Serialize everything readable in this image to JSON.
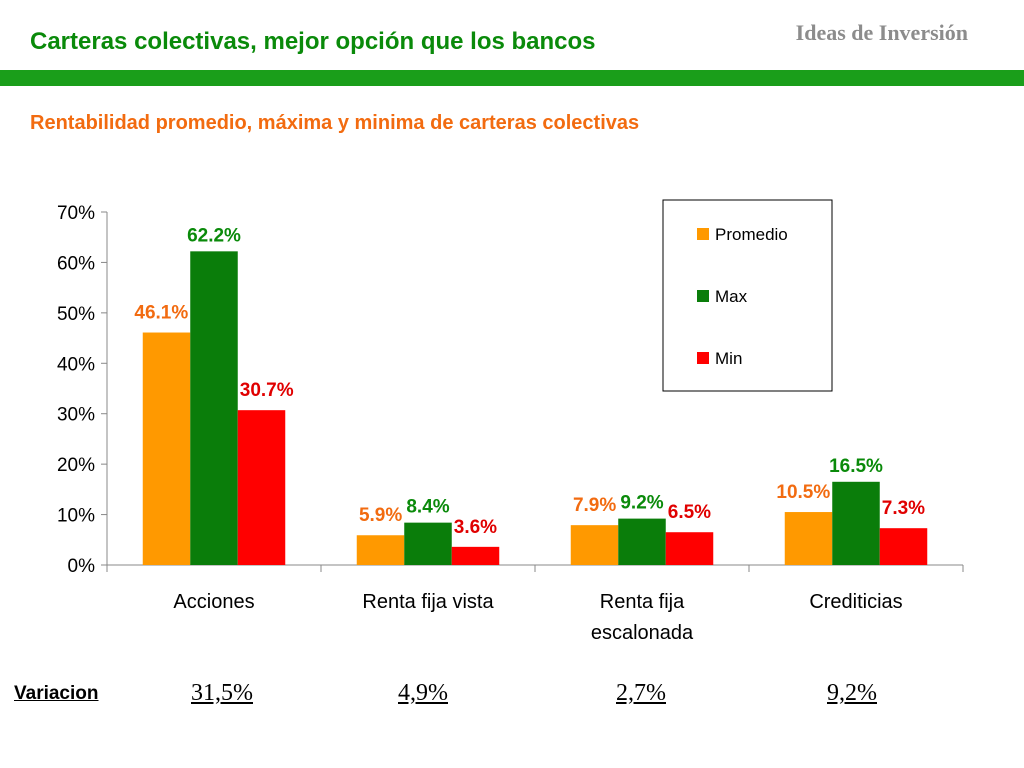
{
  "header": {
    "title": "Carteras colectivas, mejor opción que los bancos",
    "brand": "Ideas de Inversión",
    "subtitle": "Rentabilidad promedio, máxima y minima de carteras colectivas"
  },
  "chart_data": {
    "type": "bar",
    "title": "",
    "xlabel": "",
    "ylabel": "",
    "categories": [
      "Acciones",
      "Renta fija vista",
      "Renta fija escalonada",
      "Crediticias"
    ],
    "series": [
      {
        "name": "Promedio",
        "color": "#ff9900",
        "values": [
          46.1,
          5.9,
          7.9,
          10.5
        ],
        "labels": [
          "46.1%",
          "5.9%",
          "7.9%",
          "10.5%"
        ],
        "label_color": "#f26b10"
      },
      {
        "name": "Max",
        "color": "#0a7d0a",
        "values": [
          62.2,
          8.4,
          9.2,
          16.5
        ],
        "labels": [
          "62.2%",
          "8.4%",
          "9.2%",
          "16.5%"
        ],
        "label_color": "#0a8a0a"
      },
      {
        "name": "Min",
        "color": "#ff0000",
        "values": [
          30.7,
          3.6,
          6.5,
          7.3
        ],
        "labels": [
          "30.7%",
          "3.6%",
          "6.5%",
          "7.3%"
        ],
        "label_color": "#e00000"
      }
    ],
    "ylim": [
      0,
      70
    ],
    "yticks": [
      0,
      10,
      20,
      30,
      40,
      50,
      60,
      70
    ],
    "ytick_labels": [
      "0%",
      "10%",
      "20%",
      "30%",
      "40%",
      "50%",
      "60%",
      "70%"
    ],
    "grid": false,
    "legend_position": "top-right"
  },
  "variacion": {
    "label": "Variacion",
    "values": [
      "31,5%",
      "4,9%",
      "2,7%",
      "9,2%"
    ]
  }
}
